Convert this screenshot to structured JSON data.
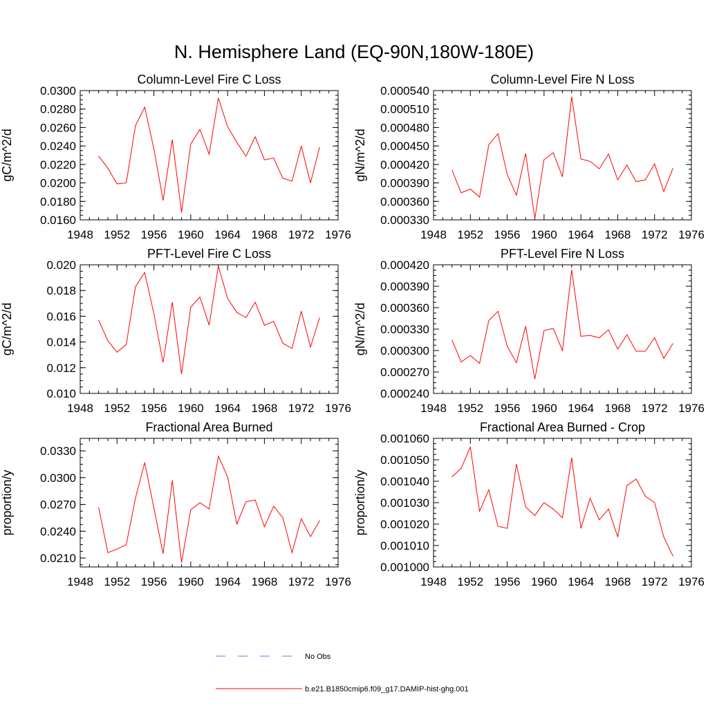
{
  "title": "N. Hemisphere Land (EQ-90N,180W-180E)",
  "chart_data": [
    {
      "type": "line",
      "title": "Column-Level Fire C Loss",
      "xlabel": "",
      "ylabel": "gC/m^2/d",
      "xlim": [
        1948,
        1976
      ],
      "ylim": [
        0.016,
        0.03
      ],
      "xticks": [
        1948,
        1952,
        1956,
        1960,
        1964,
        1968,
        1972,
        1976
      ],
      "yticks": [
        "0.0160",
        "0.0180",
        "0.0200",
        "0.0220",
        "0.0240",
        "0.0260",
        "0.0280",
        "0.0300"
      ],
      "x": [
        1950,
        1951,
        1952,
        1953,
        1954,
        1955,
        1956,
        1957,
        1958,
        1959,
        1960,
        1961,
        1962,
        1963,
        1964,
        1965,
        1966,
        1967,
        1968,
        1969,
        1970,
        1971,
        1972,
        1973,
        1974
      ],
      "series": [
        {
          "values": [
            0.0229,
            0.0216,
            0.0199,
            0.02,
            0.0262,
            0.0282,
            0.0237,
            0.0181,
            0.0247,
            0.0168,
            0.0242,
            0.0258,
            0.0231,
            0.0292,
            0.0261,
            0.0244,
            0.0229,
            0.025,
            0.0225,
            0.0227,
            0.0205,
            0.0202,
            0.024,
            0.02,
            0.0239
          ],
          "color": "#ff0000"
        }
      ]
    },
    {
      "type": "line",
      "title": "Column-Level Fire N Loss",
      "xlabel": "",
      "ylabel": "gN/m^2/d",
      "xlim": [
        1948,
        1976
      ],
      "ylim": [
        0.00033,
        0.00054
      ],
      "xticks": [
        1948,
        1952,
        1956,
        1960,
        1964,
        1968,
        1972,
        1976
      ],
      "yticks": [
        "0.000330",
        "0.000360",
        "0.000390",
        "0.000420",
        "0.000450",
        "0.000480",
        "0.000510",
        "0.000540"
      ],
      "x": [
        1950,
        1951,
        1952,
        1953,
        1954,
        1955,
        1956,
        1957,
        1958,
        1959,
        1960,
        1961,
        1962,
        1963,
        1964,
        1965,
        1966,
        1967,
        1968,
        1969,
        1970,
        1971,
        1972,
        1973,
        1974
      ],
      "series": [
        {
          "values": [
            0.000411,
            0.000374,
            0.00038,
            0.000367,
            0.000452,
            0.00047,
            0.000404,
            0.00037,
            0.000438,
            0.000332,
            0.000428,
            0.000439,
            0.0004,
            0.00053,
            0.000429,
            0.000425,
            0.000413,
            0.000437,
            0.000395,
            0.000419,
            0.000392,
            0.000395,
            0.000421,
            0.000376,
            0.000414
          ],
          "color": "#ff0000"
        }
      ]
    },
    {
      "type": "line",
      "title": "PFT-Level Fire C Loss",
      "xlabel": "",
      "ylabel": "gC/m^2/d",
      "xlim": [
        1948,
        1976
      ],
      "ylim": [
        0.01,
        0.02
      ],
      "xticks": [
        1948,
        1952,
        1956,
        1960,
        1964,
        1968,
        1972,
        1976
      ],
      "yticks": [
        "0.010",
        "0.012",
        "0.014",
        "0.016",
        "0.018",
        "0.020"
      ],
      "x": [
        1950,
        1951,
        1952,
        1953,
        1954,
        1955,
        1956,
        1957,
        1958,
        1959,
        1960,
        1961,
        1962,
        1963,
        1964,
        1965,
        1966,
        1967,
        1968,
        1969,
        1970,
        1971,
        1972,
        1973,
        1974
      ],
      "series": [
        {
          "values": [
            0.0157,
            0.0141,
            0.0132,
            0.0138,
            0.0183,
            0.0194,
            0.0162,
            0.0124,
            0.0171,
            0.0115,
            0.0167,
            0.0175,
            0.0153,
            0.0199,
            0.0174,
            0.0163,
            0.0159,
            0.0171,
            0.0153,
            0.0156,
            0.0139,
            0.0135,
            0.0164,
            0.0136,
            0.0159
          ],
          "color": "#ff0000"
        }
      ]
    },
    {
      "type": "line",
      "title": "PFT-Level Fire N Loss",
      "xlabel": "",
      "ylabel": "gN/m^2/d",
      "xlim": [
        1948,
        1976
      ],
      "ylim": [
        0.00024,
        0.00042
      ],
      "xticks": [
        1948,
        1952,
        1956,
        1960,
        1964,
        1968,
        1972,
        1976
      ],
      "yticks": [
        "0.000240",
        "0.000270",
        "0.000300",
        "0.000330",
        "0.000360",
        "0.000390",
        "0.000420"
      ],
      "x": [
        1950,
        1951,
        1952,
        1953,
        1954,
        1955,
        1956,
        1957,
        1958,
        1959,
        1960,
        1961,
        1962,
        1963,
        1964,
        1965,
        1966,
        1967,
        1968,
        1969,
        1970,
        1971,
        1972,
        1973,
        1974
      ],
      "series": [
        {
          "values": [
            0.000315,
            0.000284,
            0.000293,
            0.000282,
            0.000342,
            0.000355,
            0.000306,
            0.000283,
            0.000334,
            0.00026,
            0.000328,
            0.000331,
            0.0003,
            0.000413,
            0.00032,
            0.000321,
            0.000318,
            0.000329,
            0.000302,
            0.000322,
            0.000299,
            0.000299,
            0.000318,
            0.000289,
            0.00031
          ],
          "color": "#ff0000"
        }
      ]
    },
    {
      "type": "line",
      "title": "Fractional Area Burned",
      "xlabel": "",
      "ylabel": "proportion/y",
      "xlim": [
        1948,
        1976
      ],
      "ylim": [
        0.02,
        0.0344
      ],
      "xticks": [
        1948,
        1952,
        1956,
        1960,
        1964,
        1968,
        1972,
        1976
      ],
      "yticks": [
        "0.0210",
        "0.0240",
        "0.0270",
        "0.0300",
        "0.0330"
      ],
      "x": [
        1950,
        1951,
        1952,
        1953,
        1954,
        1955,
        1956,
        1957,
        1958,
        1959,
        1960,
        1961,
        1962,
        1963,
        1964,
        1965,
        1966,
        1967,
        1968,
        1969,
        1970,
        1971,
        1972,
        1973,
        1974
      ],
      "series": [
        {
          "values": [
            0.0267,
            0.0216,
            0.022,
            0.0225,
            0.0277,
            0.0317,
            0.0266,
            0.0215,
            0.0297,
            0.0205,
            0.0264,
            0.0272,
            0.0265,
            0.0324,
            0.0301,
            0.0248,
            0.0273,
            0.0275,
            0.0245,
            0.0268,
            0.0255,
            0.0216,
            0.0254,
            0.0234,
            0.0252
          ],
          "color": "#ff0000"
        }
      ]
    },
    {
      "type": "line",
      "title": "Fractional Area Burned - Crop",
      "xlabel": "",
      "ylabel": "proportion/y",
      "xlim": [
        1948,
        1976
      ],
      "ylim": [
        0.001,
        0.00106
      ],
      "xticks": [
        1948,
        1952,
        1956,
        1960,
        1964,
        1968,
        1972,
        1976
      ],
      "yticks": [
        "0.001000",
        "0.001010",
        "0.001020",
        "0.001030",
        "0.001040",
        "0.001050",
        "0.001060"
      ],
      "x": [
        1950,
        1951,
        1952,
        1953,
        1954,
        1955,
        1956,
        1957,
        1958,
        1959,
        1960,
        1961,
        1962,
        1963,
        1964,
        1965,
        1966,
        1967,
        1968,
        1969,
        1970,
        1971,
        1972,
        1973,
        1974
      ],
      "series": [
        {
          "values": [
            0.001042,
            0.001046,
            0.001056,
            0.001026,
            0.001036,
            0.001019,
            0.001018,
            0.001048,
            0.001028,
            0.001024,
            0.00103,
            0.001027,
            0.001023,
            0.001051,
            0.001018,
            0.001032,
            0.001022,
            0.001027,
            0.001014,
            0.001038,
            0.001041,
            0.001033,
            0.00103,
            0.001014,
            0.001005
          ],
          "color": "#ff0000"
        }
      ]
    }
  ],
  "legend": [
    {
      "label": "No Obs",
      "color": "#6e6eff",
      "style": "dashed"
    },
    {
      "label": "b.e21.B1850cmip6.f09_g17.DAMIP-hist-ghg.001",
      "color": "#ff0000",
      "style": "solid"
    }
  ]
}
